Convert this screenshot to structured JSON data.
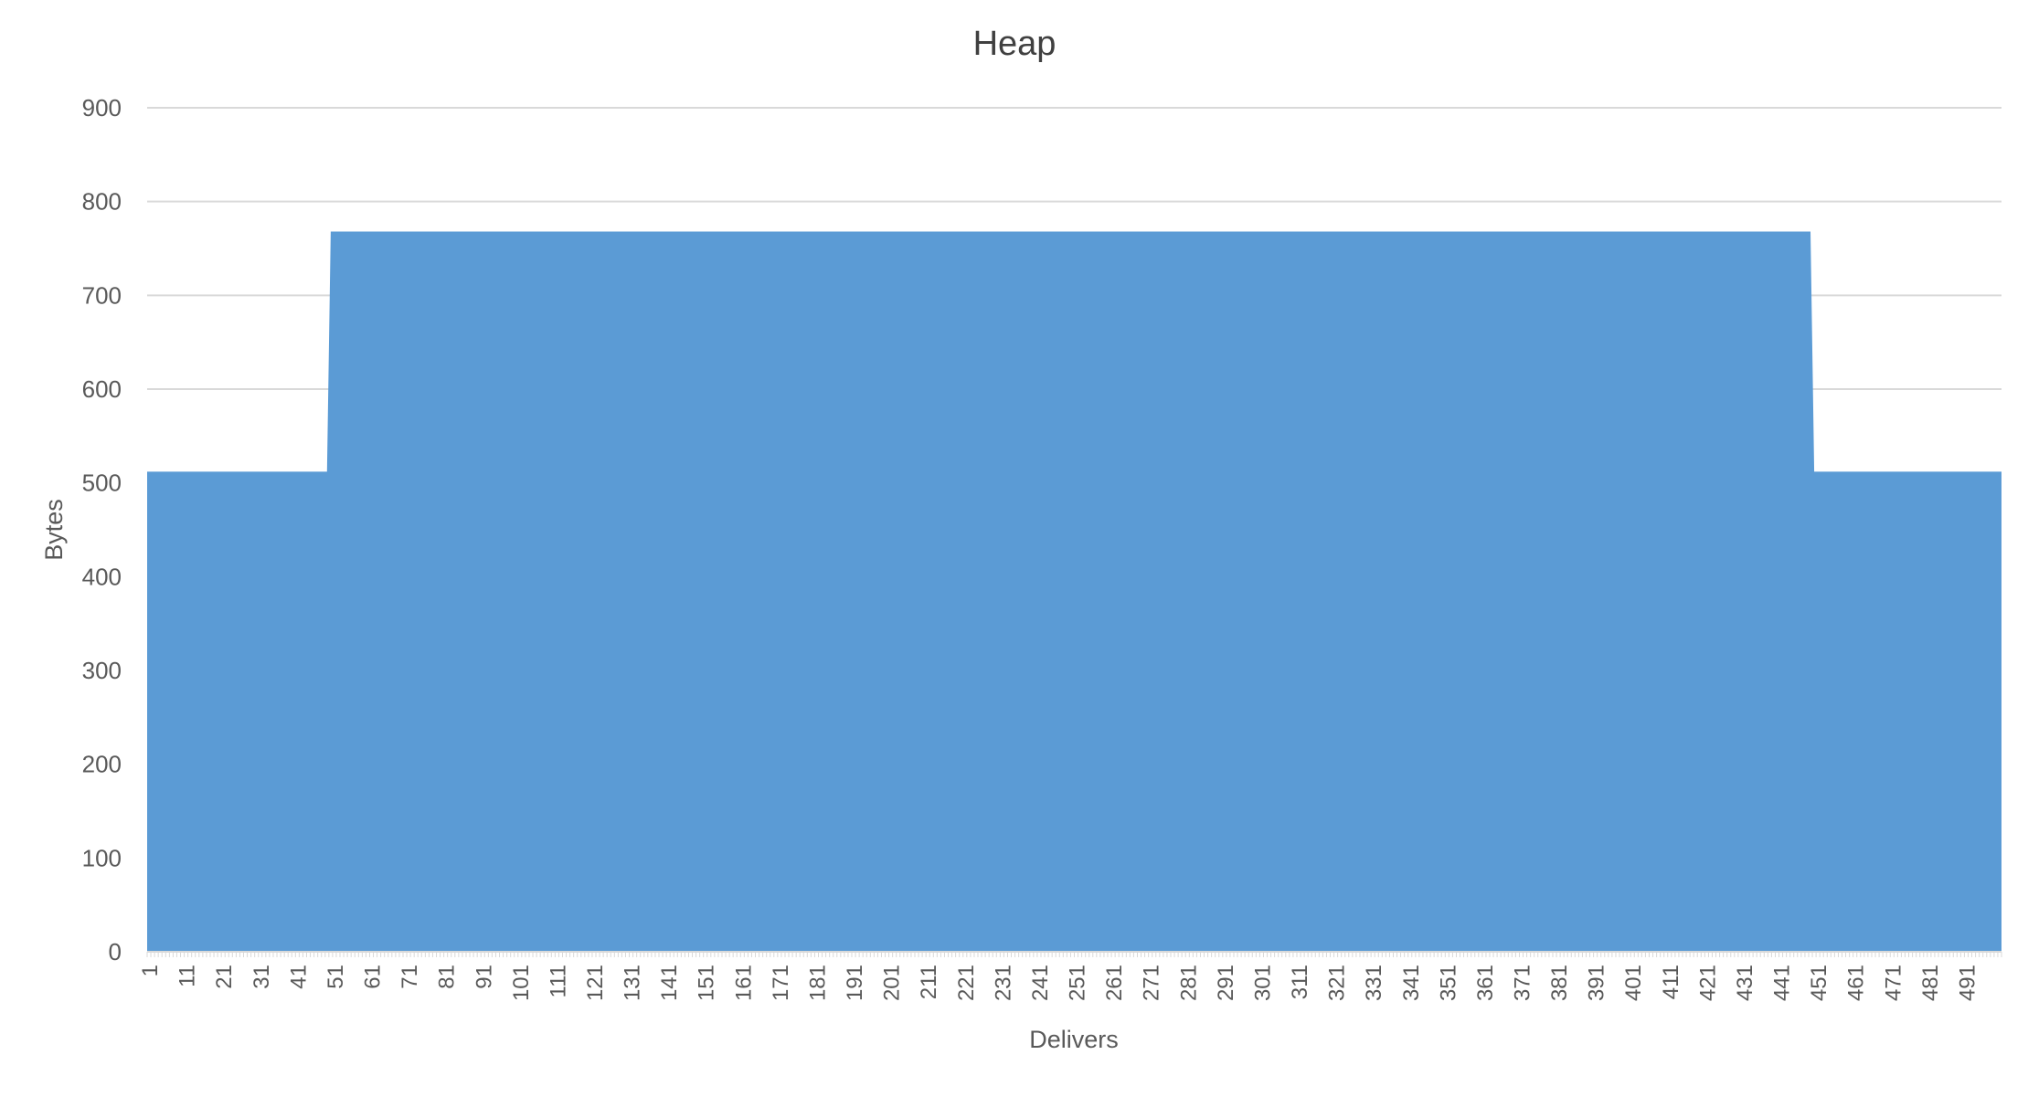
{
  "chart_data": {
    "type": "area",
    "title": "Heap",
    "xlabel": "Delivers",
    "ylabel": "Bytes",
    "ylim": [
      0,
      900
    ],
    "yticks": [
      0,
      100,
      200,
      300,
      400,
      500,
      600,
      700,
      800,
      900
    ],
    "x_range": [
      1,
      500
    ],
    "xtick_labels": [
      "1",
      "11",
      "21",
      "31",
      "41",
      "51",
      "61",
      "71",
      "81",
      "91",
      "101",
      "111",
      "121",
      "131",
      "141",
      "151",
      "161",
      "171",
      "181",
      "191",
      "201",
      "211",
      "221",
      "231",
      "241",
      "251",
      "261",
      "271",
      "281",
      "291",
      "301",
      "311",
      "321",
      "331",
      "341",
      "351",
      "361",
      "371",
      "381",
      "391",
      "401",
      "411",
      "421",
      "431",
      "441",
      "451",
      "461",
      "471",
      "481",
      "491"
    ],
    "grid": true,
    "legend": "none",
    "series": [
      {
        "color": "#5b9bd5",
        "segments": [
          {
            "from": 1,
            "to": 49,
            "value": 512
          },
          {
            "from": 50,
            "to": 449,
            "value": 768
          },
          {
            "from": 450,
            "to": 500,
            "value": 512
          }
        ]
      }
    ]
  },
  "colors": {
    "area": "#5b9bd5",
    "gridline": "#d9d9d9",
    "text": "#595959",
    "title": "#404040"
  }
}
